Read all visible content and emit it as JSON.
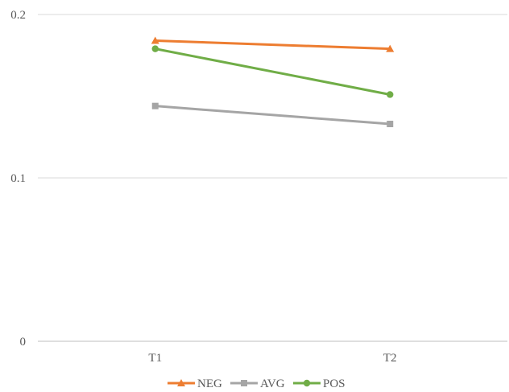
{
  "chart_data": {
    "type": "line",
    "categories": [
      "T1",
      "T2"
    ],
    "series": [
      {
        "name": "NEG",
        "values": [
          0.184,
          0.179
        ],
        "color": "#ED7D31",
        "marker": "triangle"
      },
      {
        "name": "AVG",
        "values": [
          0.144,
          0.133
        ],
        "color": "#A5A5A5",
        "marker": "square"
      },
      {
        "name": "POS",
        "values": [
          0.179,
          0.151
        ],
        "color": "#70AD47",
        "marker": "circle"
      }
    ],
    "y_ticks": [
      {
        "value": 0,
        "label": "0"
      },
      {
        "value": 0.1,
        "label": "0.1"
      },
      {
        "value": 0.2,
        "label": "0.2"
      }
    ],
    "ylim": [
      0,
      0.2
    ],
    "grid": true,
    "legend_position": "bottom",
    "title": "",
    "xlabel": "",
    "ylabel": ""
  }
}
